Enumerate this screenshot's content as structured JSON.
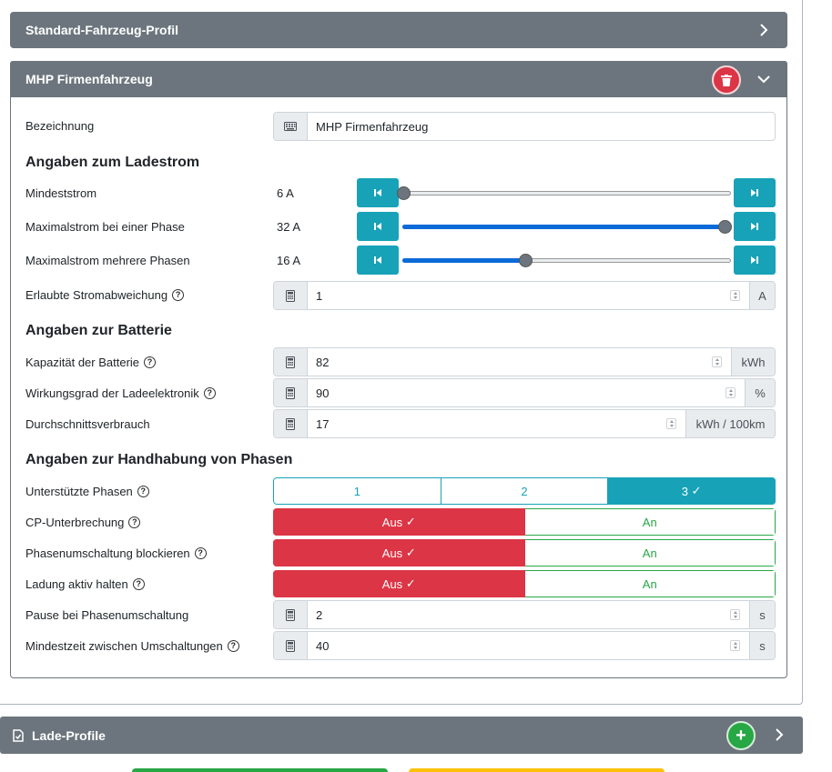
{
  "standard_profile": {
    "title": "Standard-Fahrzeug-Profil"
  },
  "vehicle": {
    "title": "MHP Firmenfahrzeug",
    "name_label": "Bezeichnung",
    "name_value": "MHP Firmenfahrzeug"
  },
  "charging_current": {
    "heading": "Angaben zum Ladestrom",
    "min": {
      "label": "Mindeststrom",
      "value": "6 A",
      "fraction": 0.0
    },
    "max_single": {
      "label": "Maximalstrom bei einer Phase",
      "value": "32 A",
      "fraction": 1.0
    },
    "max_multi": {
      "label": "Maximalstrom mehrere Phasen",
      "value": "16 A",
      "fraction": 0.38
    },
    "deviation": {
      "label": "Erlaubte Stromabweichung",
      "value": "1",
      "unit": "A"
    }
  },
  "battery": {
    "heading": "Angaben zur Batterie",
    "capacity": {
      "label": "Kapazität der Batterie",
      "value": "82",
      "unit": "kWh"
    },
    "efficiency": {
      "label": "Wirkungsgrad der Ladeelektronik",
      "value": "90",
      "unit": "%"
    },
    "consumption": {
      "label": "Durchschnittsverbrauch",
      "value": "17",
      "unit": "kWh / 100km"
    }
  },
  "phases": {
    "heading": "Angaben zur Handhabung von Phasen",
    "supported": {
      "label": "Unterstützte Phasen",
      "options": [
        "1",
        "2",
        "3"
      ],
      "selected": "3"
    },
    "cp_interrupt": {
      "label": "CP-Unterbrechung",
      "off": "Aus",
      "on": "An"
    },
    "block_switch": {
      "label": "Phasenumschaltung blockieren",
      "off": "Aus",
      "on": "An"
    },
    "keep_active": {
      "label": "Ladung aktiv halten",
      "off": "Aus",
      "on": "An"
    },
    "pause": {
      "label": "Pause bei Phasenumschaltung",
      "value": "2",
      "unit": "s"
    },
    "min_time": {
      "label": "Mindestzeit zwischen Umschaltungen",
      "value": "40",
      "unit": "s"
    }
  },
  "charge_profiles": {
    "title": "Lade-Profile",
    "add": "+"
  },
  "help_glyph": "?",
  "colors": {
    "header": "#6c757d",
    "info": "#17a2b8",
    "danger": "#dc3545",
    "success": "#28a745",
    "slider": "#0b6ad8"
  }
}
